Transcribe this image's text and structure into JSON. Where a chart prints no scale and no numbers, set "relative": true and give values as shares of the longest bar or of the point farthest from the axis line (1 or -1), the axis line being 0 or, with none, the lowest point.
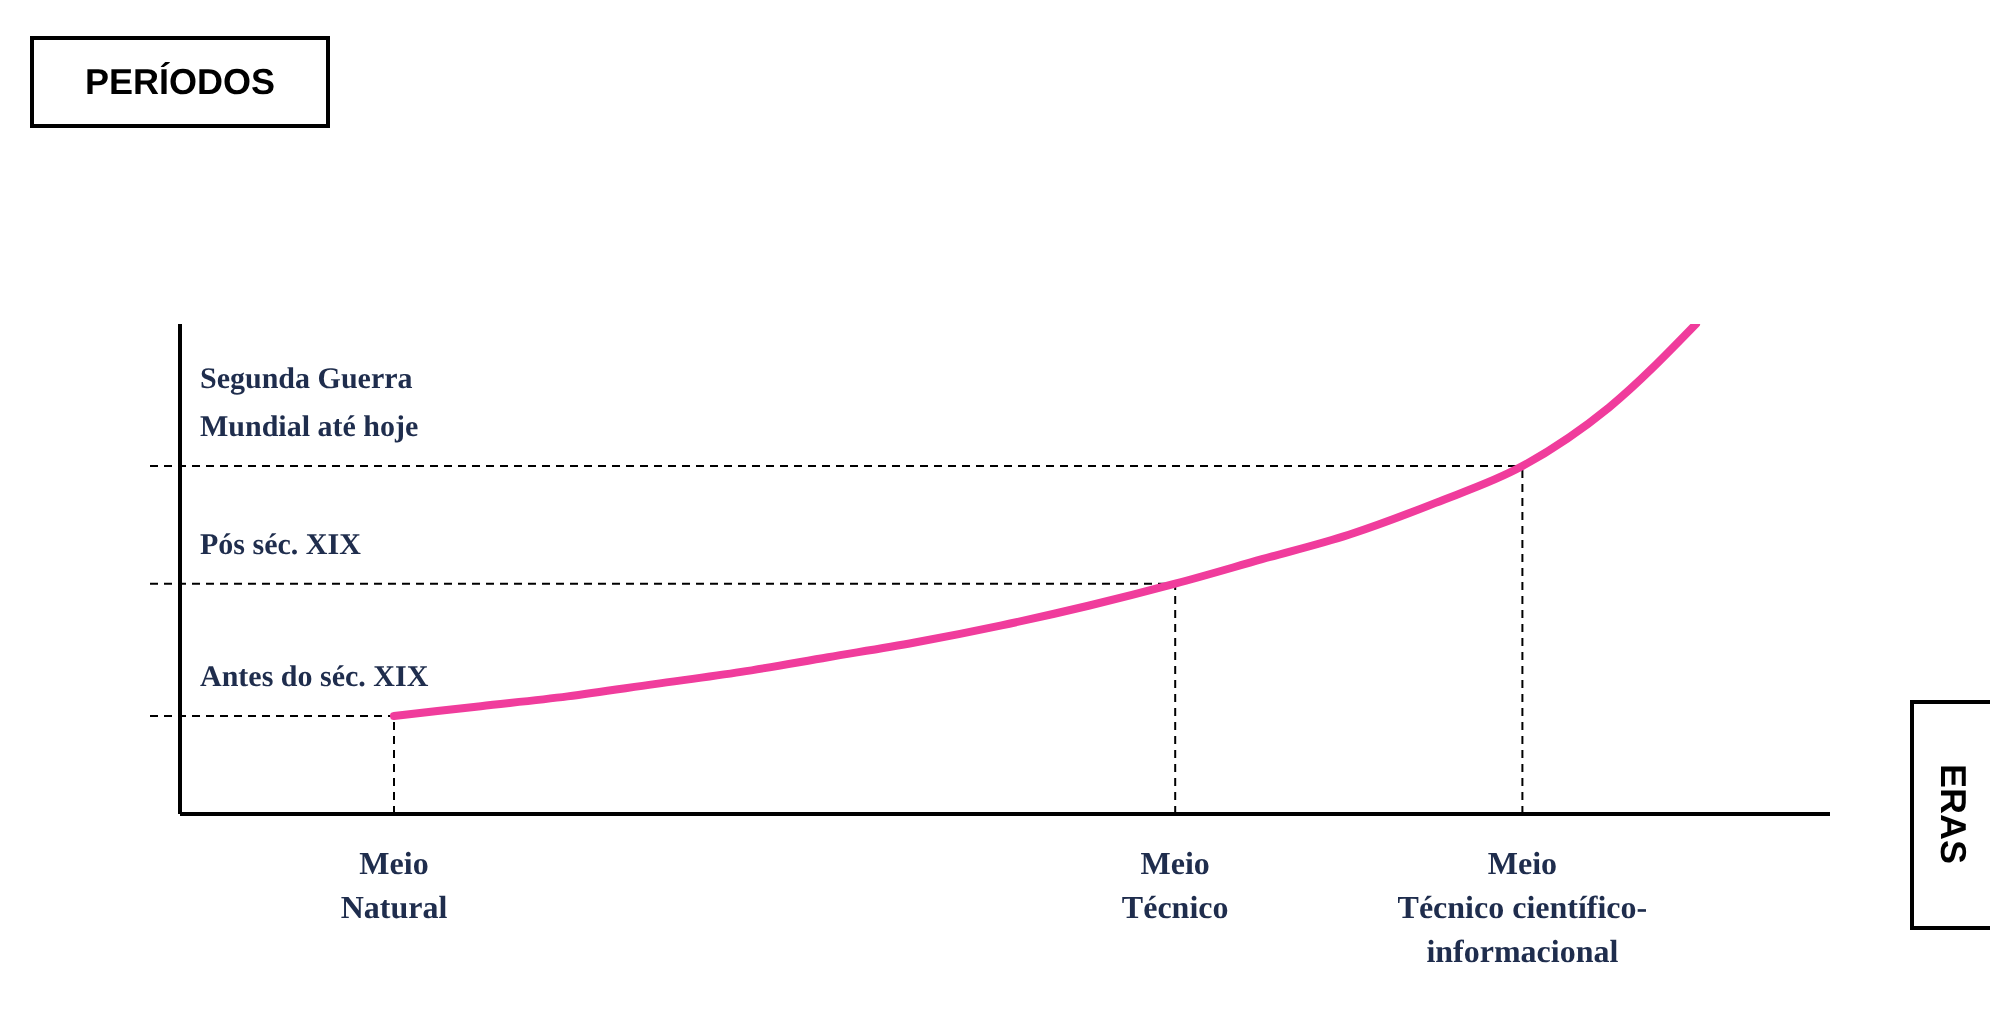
{
  "chart_data": {
    "type": "line",
    "relative": true,
    "annotations": [
      "PERÍODOS",
      "ERAS"
    ],
    "categories": [
      "Meio\nNatural",
      null,
      null,
      null,
      null,
      null,
      null,
      null,
      null,
      "Meio\nTécnico",
      null,
      null,
      null,
      "Meio\nTécnico científico-\ninformacional",
      null,
      null
    ],
    "series": [
      {
        "color": "#f03c9c",
        "values": [
          0.2,
          0.22,
          0.24,
          0.265,
          0.29,
          0.32,
          0.35,
          0.385,
          0.425,
          0.47,
          0.52,
          0.57,
          0.635,
          0.71,
          0.83,
          1.0
        ]
      }
    ],
    "ref_lines": [
      {
        "axis": "y",
        "value": 0.2,
        "label": "Antes do séc. XIX",
        "line_style": "dashed"
      },
      {
        "axis": "y",
        "value": 0.47,
        "label": "Pós séc. XIX",
        "line_style": "dashed"
      },
      {
        "axis": "y",
        "value": 0.71,
        "label": "Segunda Guerra\nMundial até hoje",
        "line_style": "dashed"
      },
      {
        "axis": "x",
        "value": "Meio\nNatural",
        "line_style": "dashed"
      },
      {
        "axis": "x",
        "value": "Meio\nTécnico",
        "line_style": "dashed"
      },
      {
        "axis": "x",
        "value": "Meio\nTécnico científico-\ninformacional",
        "line_style": "dashed"
      }
    ],
    "legend": false,
    "grid": false,
    "marker": "none",
    "line_style": "solid"
  }
}
